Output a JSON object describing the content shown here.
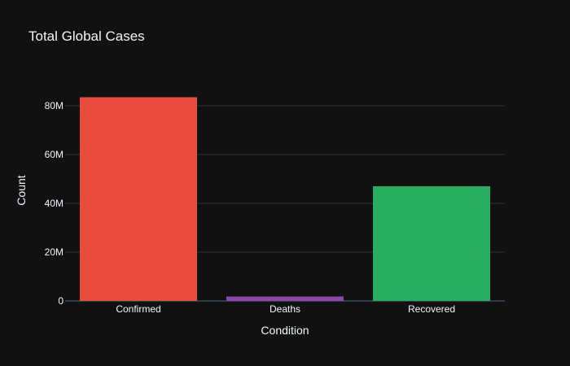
{
  "chart_data": {
    "type": "bar",
    "title": "Total Global Cases",
    "xlabel": "Condition",
    "ylabel": "Count",
    "categories": [
      "Confirmed",
      "Deaths",
      "Recovered"
    ],
    "values": [
      83500000,
      1820000,
      47000000
    ],
    "colors": [
      "#e74c3c",
      "#8e44ad",
      "#27ae60"
    ],
    "ylim": [
      0,
      90000000
    ],
    "yticks": [
      0,
      20000000,
      40000000,
      60000000,
      80000000
    ],
    "ytick_labels": [
      "0",
      "20M",
      "40M",
      "60M",
      "80M"
    ],
    "grid": true,
    "legend": "none"
  },
  "colors": {
    "background": "#111111",
    "text": "#f2f5fa",
    "grid": "#283442"
  }
}
